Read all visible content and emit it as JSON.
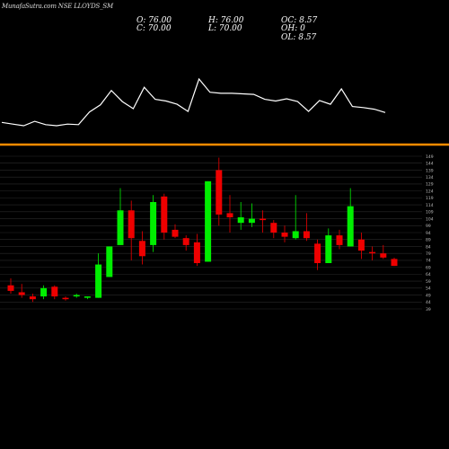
{
  "header": {
    "title": "MunafaSutra.com NSE LLOYDS_SM",
    "open_label": "O: 76.00",
    "high_label": "H: 76.00",
    "oc_label": "OC: 8.57",
    "close_label": "C: 70.00",
    "low_label": "L: 70.00",
    "oh_label": "OH: 0",
    "ol_label": "OL: 8.57"
  },
  "colors": {
    "background": "#000000",
    "up": "#00ee00",
    "down": "#ee0000",
    "doji": "#ffffff",
    "separator": "#ff8c00",
    "line": "#ffffff",
    "grid": "#2a2a2a",
    "label": "#bbbbbb"
  },
  "chart_data": {
    "type": "candlestick",
    "ylim": [
      39,
      149
    ],
    "y_ticks": [
      149,
      144,
      139,
      134,
      129,
      124,
      119,
      114,
      109,
      104,
      99,
      94,
      89,
      84,
      79,
      74,
      69,
      64,
      59,
      54,
      49,
      44,
      39
    ],
    "candles": [
      {
        "open": 56,
        "high": 61,
        "low": 50,
        "close": 52
      },
      {
        "open": 51,
        "high": 57,
        "low": 47,
        "close": 49
      },
      {
        "open": 48,
        "high": 50,
        "low": 44,
        "close": 46
      },
      {
        "open": 48,
        "high": 56,
        "low": 46,
        "close": 54
      },
      {
        "open": 55,
        "high": 56,
        "low": 46,
        "close": 48
      },
      {
        "open": 47,
        "high": 48,
        "low": 45,
        "close": 46
      },
      {
        "open": 48,
        "high": 50,
        "low": 47,
        "close": 49
      },
      {
        "open": 47,
        "high": 48,
        "low": 46,
        "close": 48
      },
      {
        "open": 47,
        "high": 79,
        "low": 47,
        "close": 71
      },
      {
        "open": 62,
        "high": 84,
        "low": 62,
        "close": 84
      },
      {
        "open": 85,
        "high": 126,
        "low": 85,
        "close": 110
      },
      {
        "open": 110,
        "high": 117,
        "low": 74,
        "close": 90
      },
      {
        "open": 88,
        "high": 95,
        "low": 71,
        "close": 77
      },
      {
        "open": 85,
        "high": 121,
        "low": 80,
        "close": 116
      },
      {
        "open": 120,
        "high": 122,
        "low": 89,
        "close": 94
      },
      {
        "open": 96,
        "high": 100,
        "low": 90,
        "close": 91
      },
      {
        "open": 90,
        "high": 92,
        "low": 81,
        "close": 85
      },
      {
        "open": 87,
        "high": 93,
        "low": 70,
        "close": 72
      },
      {
        "open": 73,
        "high": 131,
        "low": 73,
        "close": 131
      },
      {
        "open": 139,
        "high": 148,
        "low": 99,
        "close": 107
      },
      {
        "open": 108,
        "high": 121,
        "low": 94,
        "close": 105
      },
      {
        "open": 101,
        "high": 116,
        "low": 96,
        "close": 105
      },
      {
        "open": 101,
        "high": 115,
        "low": 98,
        "close": 104
      },
      {
        "open": 104,
        "high": 110,
        "low": 94,
        "close": 103
      },
      {
        "open": 101,
        "high": 103,
        "low": 90,
        "close": 94
      },
      {
        "open": 94,
        "high": 99,
        "low": 87,
        "close": 91
      },
      {
        "open": 90,
        "high": 121,
        "low": 89,
        "close": 95
      },
      {
        "open": 95,
        "high": 108,
        "low": 88,
        "close": 90
      },
      {
        "open": 86,
        "high": 89,
        "low": 67,
        "close": 72
      },
      {
        "open": 72,
        "high": 97,
        "low": 72,
        "close": 92
      },
      {
        "open": 92,
        "high": 96,
        "low": 82,
        "close": 85
      },
      {
        "open": 84,
        "high": 126,
        "low": 84,
        "close": 113
      },
      {
        "open": 89,
        "high": 94,
        "low": 75,
        "close": 81
      },
      {
        "open": 80,
        "high": 84,
        "low": 74,
        "close": 79
      },
      {
        "open": 79,
        "high": 85,
        "low": 75,
        "close": 76
      },
      {
        "open": 75,
        "high": 76,
        "low": 70,
        "close": 70
      }
    ]
  }
}
